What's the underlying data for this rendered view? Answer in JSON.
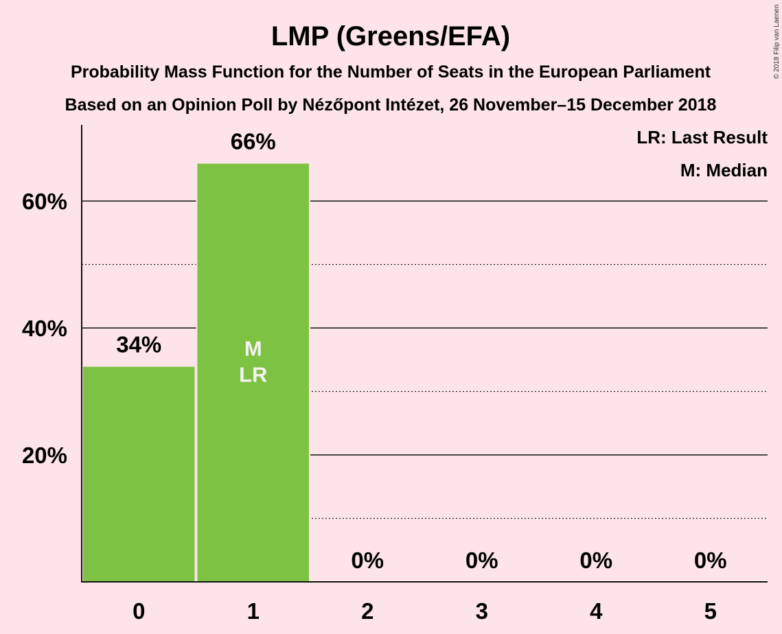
{
  "chart_data": {
    "type": "bar",
    "title": "LMP (Greens/EFA)",
    "subtitle": "Probability Mass Function for the Number of Seats in the European Parliament",
    "subtitle2": "Based on an Opinion Poll by Nézőpont Intézet, 26 November–15 December 2018",
    "categories": [
      "0",
      "1",
      "2",
      "3",
      "4",
      "5"
    ],
    "values": [
      34,
      66,
      0,
      0,
      0,
      0
    ],
    "value_labels": [
      "34%",
      "66%",
      "0%",
      "0%",
      "0%",
      "0%"
    ],
    "ylim": [
      0,
      72
    ],
    "y_major_ticks": [
      20,
      40,
      60
    ],
    "y_minor_gridlines": [
      10,
      30,
      50
    ],
    "y_tick_labels": [
      "20%",
      "40%",
      "60%"
    ],
    "median_label": "M",
    "last_result_label": "LR",
    "median_category": "1",
    "last_result_category": "1",
    "legend": [
      "LR: Last Result",
      "M: Median"
    ],
    "legend_position": "top-right",
    "copyright": "© 2018 Filip van Laenen",
    "bar_color": "#7dc242"
  }
}
